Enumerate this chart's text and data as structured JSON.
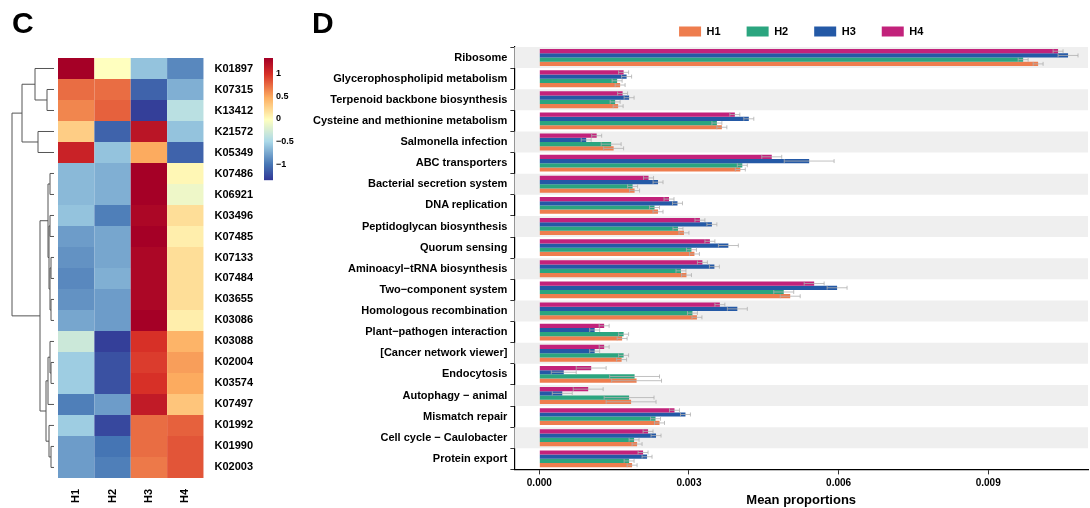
{
  "chart_data": [
    {
      "type": "heatmap",
      "title": "C",
      "categories": [
        "H1",
        "H2",
        "H3",
        "H4"
      ],
      "y_categories": [
        "K01897",
        "K07315",
        "K13412",
        "K21572",
        "K05349",
        "K07486",
        "K06921",
        "K03496",
        "K07485",
        "K07133",
        "K07484",
        "K03655",
        "K03086",
        "K03088",
        "K02004",
        "K03574",
        "K07497",
        "K01992",
        "K01990",
        "K02003"
      ],
      "cells": [
        [
          1.35,
          0.0,
          -0.6,
          -0.9
        ],
        [
          0.75,
          0.75,
          -1.1,
          -0.7
        ],
        [
          0.65,
          0.8,
          -1.3,
          -0.4
        ],
        [
          0.3,
          -1.1,
          1.2,
          -0.6
        ],
        [
          1.1,
          -0.6,
          0.5,
          -1.1
        ],
        [
          -0.65,
          -0.7,
          1.35,
          0.05
        ],
        [
          -0.65,
          -0.7,
          1.35,
          -0.1
        ],
        [
          -0.6,
          -0.95,
          1.3,
          0.2
        ],
        [
          -0.8,
          -0.75,
          1.35,
          0.1
        ],
        [
          -0.85,
          -0.75,
          1.3,
          0.2
        ],
        [
          -0.9,
          -0.7,
          1.3,
          0.2
        ],
        [
          -0.85,
          -0.8,
          1.3,
          0.2
        ],
        [
          -0.75,
          -0.8,
          1.35,
          0.1
        ],
        [
          -0.3,
          -1.3,
          1.0,
          0.45
        ],
        [
          -0.55,
          -1.2,
          0.95,
          0.55
        ],
        [
          -0.55,
          -1.2,
          1.0,
          0.5
        ],
        [
          -0.95,
          -0.8,
          1.15,
          0.35
        ],
        [
          -0.55,
          -1.25,
          0.75,
          0.8
        ],
        [
          -0.8,
          -1.0,
          0.75,
          0.85
        ],
        [
          -0.8,
          -0.95,
          0.7,
          0.85
        ]
      ],
      "clim": [
        -1.35,
        1.35
      ],
      "cticks": [
        -1,
        -0.5,
        0,
        0.5,
        1
      ]
    },
    {
      "type": "bar",
      "orientation": "horizontal",
      "title": "D",
      "xlabel": "Mean proportions",
      "categories": [
        "Ribosome",
        "Glycerophospholipid metabolism",
        "Terpenoid backbone biosynthesis",
        "Cysteine and methionine metabolism",
        "Salmonella infection",
        "ABC transporters",
        "Bacterial secretion system",
        "DNA replication",
        "Peptidoglycan biosynthesis",
        "Quorum sensing",
        "Aminoacyl−tRNA biosynthesis",
        "Two−component system",
        "Homologous recombination",
        "Plant−pathogen interaction",
        "[Cancer network viewer]",
        "Endocytosis",
        "Autophagy − animal",
        "Mismatch repair",
        "Cell cycle − Caulobacter",
        "Protein export"
      ],
      "series": [
        {
          "name": "H1",
          "color": "#ee7d4e",
          "values": [
            0.01,
            0.00162,
            0.00158,
            0.00366,
            0.00149,
            0.00403,
            0.00191,
            0.00238,
            0.0029,
            0.00311,
            0.00295,
            0.00503,
            0.00316,
            0.00166,
            0.00165,
            0.00195,
            0.00184,
            0.00241,
            0.00196,
            0.00186
          ],
          "errors": [
            0.0001,
            0.0001,
            0.0001,
            0.0001,
            0.0002,
            0.0001,
            0.0001,
            0.0001,
            0.0001,
            0.0001,
            0.0001,
            0.0002,
            0.0001,
            0.0001,
            0.0001,
            0.0005,
            0.0005,
            0.0001,
            0.0001,
            0.0001
          ]
        },
        {
          "name": "H2",
          "color": "#2ba57f",
          "values": [
            0.0097,
            0.00156,
            0.00152,
            0.00356,
            0.00144,
            0.00407,
            0.00187,
            0.00231,
            0.00278,
            0.00305,
            0.00284,
            0.0049,
            0.00307,
            0.00169,
            0.00169,
            0.00191,
            0.0018,
            0.00233,
            0.0019,
            0.0018
          ],
          "errors": [
            0.0001,
            0.0001,
            0.0001,
            0.0001,
            0.0002,
            0.0001,
            0.0001,
            0.0001,
            0.0001,
            0.0001,
            0.0001,
            0.0002,
            0.0001,
            0.0001,
            0.0001,
            0.0005,
            0.0005,
            0.0001,
            0.0001,
            0.0001
          ]
        },
        {
          "name": "H3",
          "color": "#2459a6",
          "values": [
            0.0106,
            0.00175,
            0.0018,
            0.0042,
            0.00094,
            0.00541,
            0.00238,
            0.00277,
            0.00346,
            0.00379,
            0.00351,
            0.00597,
            0.00397,
            0.00111,
            0.00111,
            0.00049,
            0.00046,
            0.00293,
            0.00234,
            0.00216
          ],
          "errors": [
            0.0002,
            0.0001,
            0.0001,
            0.0001,
            0.0001,
            0.0005,
            0.0001,
            0.0001,
            0.0001,
            0.0002,
            0.0001,
            0.0002,
            0.0002,
            0.0001,
            0.0001,
            0.00025,
            0.0002,
            0.0001,
            0.0001,
            0.0001
          ]
        },
        {
          "name": "H4",
          "color": "#c2227b",
          "values": [
            0.0104,
            0.00169,
            0.00167,
            0.00392,
            0.00115,
            0.00466,
            0.00219,
            0.0026,
            0.00322,
            0.00342,
            0.00327,
            0.00551,
            0.00362,
            0.0013,
            0.0013,
            0.00104,
            0.00098,
            0.00271,
            0.00218,
            0.00208
          ],
          "errors": [
            0.0001,
            0.0001,
            0.0001,
            0.0001,
            0.0001,
            0.0002,
            0.0001,
            0.0001,
            0.0001,
            0.0001,
            0.0001,
            0.0002,
            0.0001,
            0.0001,
            0.0001,
            0.0003,
            0.0003,
            0.0001,
            0.0001,
            0.0001
          ]
        }
      ],
      "xlim": [
        -0.0005,
        0.011
      ],
      "xticks": [
        {
          "value": 0,
          "label": "0.000"
        },
        {
          "value": 0.003,
          "label": "0.003"
        },
        {
          "value": 0.006,
          "label": "0.006"
        },
        {
          "value": 0.009,
          "label": "0.009"
        }
      ],
      "grid": false,
      "legend": "top"
    }
  ]
}
